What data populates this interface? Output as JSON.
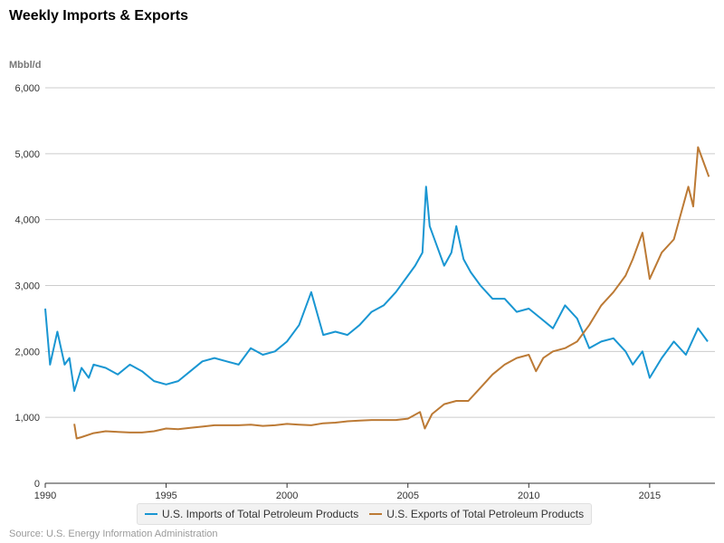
{
  "chart_data": {
    "type": "line",
    "title": "Weekly Imports & Exports",
    "ylabel": "Mbbl/d",
    "ylim": [
      0,
      6000
    ],
    "yticks": [
      0,
      1000,
      2000,
      3000,
      4000,
      5000,
      6000
    ],
    "ytick_labels": [
      "0",
      "1,000",
      "2,000",
      "3,000",
      "4,000",
      "5,000",
      "6,000"
    ],
    "xlim": [
      1990,
      2017.7
    ],
    "xticks": [
      1990,
      1995,
      2000,
      2005,
      2010,
      2015
    ],
    "xtick_labels": [
      "1990",
      "1995",
      "2000",
      "2005",
      "2010",
      "2015"
    ],
    "grid": "horizontal",
    "legend": "bottom",
    "series": [
      {
        "name": "U.S. Imports of Total Petroleum Products",
        "color": "#1996d2",
        "x": [
          1990.0,
          1990.2,
          1990.5,
          1990.8,
          1991.0,
          1991.2,
          1991.5,
          1991.8,
          1992.0,
          1992.5,
          1993.0,
          1993.5,
          1994.0,
          1994.5,
          1995.0,
          1995.5,
          1996.0,
          1996.5,
          1997.0,
          1997.5,
          1998.0,
          1998.5,
          1999.0,
          1999.5,
          2000.0,
          2000.5,
          2001.0,
          2001.5,
          2002.0,
          2002.5,
          2003.0,
          2003.5,
          2004.0,
          2004.5,
          2005.0,
          2005.3,
          2005.6,
          2005.75,
          2005.9,
          2006.2,
          2006.5,
          2006.8,
          2007.0,
          2007.3,
          2007.6,
          2008.0,
          2008.5,
          2009.0,
          2009.5,
          2010.0,
          2010.5,
          2011.0,
          2011.5,
          2012.0,
          2012.5,
          2013.0,
          2013.5,
          2014.0,
          2014.3,
          2014.7,
          2015.0,
          2015.5,
          2016.0,
          2016.5,
          2017.0,
          2017.4
        ],
        "values": [
          2650,
          1800,
          2300,
          1800,
          1900,
          1400,
          1750,
          1600,
          1800,
          1750,
          1650,
          1800,
          1700,
          1550,
          1500,
          1550,
          1700,
          1850,
          1900,
          1850,
          1800,
          2050,
          1950,
          2000,
          2150,
          2400,
          2900,
          2250,
          2300,
          2250,
          2400,
          2600,
          2700,
          2900,
          3150,
          3300,
          3500,
          4500,
          3900,
          3600,
          3300,
          3500,
          3900,
          3400,
          3200,
          3000,
          2800,
          2800,
          2600,
          2650,
          2500,
          2350,
          2700,
          2500,
          2050,
          2150,
          2200,
          2000,
          1800,
          2000,
          1600,
          1900,
          2150,
          1950,
          2350,
          2150
        ]
      },
      {
        "name": "U.S. Exports of Total Petroleum Products",
        "color": "#bc7a35",
        "x": [
          1991.2,
          1991.3,
          1991.5,
          1992.0,
          1992.5,
          1993.0,
          1993.5,
          1994.0,
          1994.5,
          1995.0,
          1995.5,
          1996.0,
          1996.5,
          1997.0,
          1997.5,
          1998.0,
          1998.5,
          1999.0,
          1999.5,
          2000.0,
          2000.5,
          2001.0,
          2001.5,
          2002.0,
          2002.5,
          2003.0,
          2003.5,
          2004.0,
          2004.5,
          2005.0,
          2005.5,
          2005.7,
          2006.0,
          2006.5,
          2007.0,
          2007.5,
          2008.0,
          2008.5,
          2009.0,
          2009.5,
          2010.0,
          2010.3,
          2010.6,
          2011.0,
          2011.5,
          2012.0,
          2012.5,
          2013.0,
          2013.5,
          2014.0,
          2014.3,
          2014.7,
          2015.0,
          2015.5,
          2016.0,
          2016.3,
          2016.6,
          2016.8,
          2017.0,
          2017.3,
          2017.45
        ],
        "values": [
          900,
          680,
          700,
          760,
          790,
          780,
          770,
          770,
          790,
          830,
          820,
          840,
          860,
          880,
          880,
          880,
          890,
          870,
          880,
          900,
          890,
          880,
          910,
          920,
          940,
          950,
          960,
          960,
          960,
          980,
          1080,
          830,
          1050,
          1200,
          1250,
          1250,
          1450,
          1650,
          1800,
          1900,
          1950,
          1700,
          1900,
          2000,
          2050,
          2150,
          2400,
          2700,
          2900,
          3150,
          3400,
          3800,
          3100,
          3500,
          3700,
          4100,
          4500,
          4200,
          5100,
          4800,
          4650
        ]
      }
    ]
  },
  "source": "Source: U.S. Energy Information Administration"
}
